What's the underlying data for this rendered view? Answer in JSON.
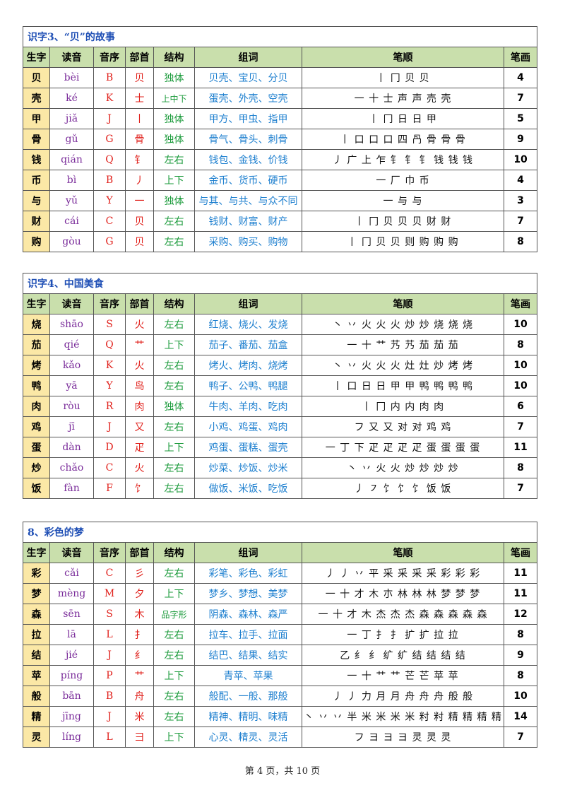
{
  "headers": {
    "char": "生字",
    "pinyin": "读音",
    "letter": "音序",
    "radical": "部首",
    "structure": "结构",
    "words": "组词",
    "order": "笔顺",
    "count": "笔画"
  },
  "sections": [
    {
      "title": "识字3、“贝”的故事",
      "rows": [
        {
          "char": "贝",
          "pinyin": "bèi",
          "letter": "B",
          "radical": "贝",
          "structure": "独体",
          "words": "贝壳、宝贝、分贝",
          "order": "丨 冂 贝 贝",
          "count": "4"
        },
        {
          "char": "壳",
          "pinyin": "ké",
          "letter": "K",
          "radical": "士",
          "structure": "上中下",
          "words": "蛋壳、外壳、空壳",
          "order": "一 十 士 声 声 売 壳",
          "count": "7"
        },
        {
          "char": "甲",
          "pinyin": "jiǎ",
          "letter": "J",
          "radical": "丨",
          "structure": "独体",
          "words": "甲方、甲虫、指甲",
          "order": "丨 冂 日 日 甲",
          "count": "5"
        },
        {
          "char": "骨",
          "pinyin": "gǔ",
          "letter": "G",
          "radical": "骨",
          "structure": "独体",
          "words": "骨气、骨头、刺骨",
          "order": "丨 口 口 口 四 冎 骨 骨 骨",
          "count": "9"
        },
        {
          "char": "钱",
          "pinyin": "qián",
          "letter": "Q",
          "radical": "钅",
          "structure": "左右",
          "words": "钱包、金钱、价钱",
          "order": "丿 广 上 乍 钅 钅 钅 钱 钱 钱",
          "count": "10"
        },
        {
          "char": "币",
          "pinyin": "bì",
          "letter": "B",
          "radical": "丿",
          "structure": "上下",
          "words": "金币、货币、硬币",
          "order": "一 厂 巾 币",
          "count": "4"
        },
        {
          "char": "与",
          "pinyin": "yǔ",
          "letter": "Y",
          "radical": "一",
          "structure": "独体",
          "words": "与其、与共、与众不同",
          "order": "一 与 与",
          "count": "3"
        },
        {
          "char": "财",
          "pinyin": "cái",
          "letter": "C",
          "radical": "贝",
          "structure": "左右",
          "words": "钱财、财富、财产",
          "order": "丨 冂 贝 贝 贝 财 财",
          "count": "7"
        },
        {
          "char": "购",
          "pinyin": "gòu",
          "letter": "G",
          "radical": "贝",
          "structure": "左右",
          "words": "采购、购买、购物",
          "order": "丨 冂 贝 贝 则 购 购 购",
          "count": "8"
        }
      ]
    },
    {
      "title": "识字4、中国美食",
      "rows": [
        {
          "char": "烧",
          "pinyin": "shāo",
          "letter": "S",
          "radical": "火",
          "structure": "左右",
          "words": "红烧、烧火、发烧",
          "order": "丶 丷 火 火 火 炒 炒 烧 烧 烧",
          "count": "10"
        },
        {
          "char": "茄",
          "pinyin": "qié",
          "letter": "Q",
          "radical": "艹",
          "structure": "上下",
          "words": "茄子、番茄、茄盒",
          "order": "一 十 艹 艿 艿 茄 茄 茄",
          "count": "8"
        },
        {
          "char": "烤",
          "pinyin": "kǎo",
          "letter": "K",
          "radical": "火",
          "structure": "左右",
          "words": "烤火、烤肉、烧烤",
          "order": "丶 丷 火 火 火 灶 灶 炒 烤 烤",
          "count": "10"
        },
        {
          "char": "鸭",
          "pinyin": "yā",
          "letter": "Y",
          "radical": "鸟",
          "structure": "左右",
          "words": "鸭子、公鸭、鸭腿",
          "order": "丨 口 日 日 甲 甲 鸭 鸭 鸭 鸭",
          "count": "10"
        },
        {
          "char": "肉",
          "pinyin": "ròu",
          "letter": "R",
          "radical": "肉",
          "structure": "独体",
          "words": "牛肉、羊肉、吃肉",
          "order": "丨 冂 内 内 肉 肉",
          "count": "6"
        },
        {
          "char": "鸡",
          "pinyin": "jī",
          "letter": "J",
          "radical": "又",
          "structure": "左右",
          "words": "小鸡、鸡蛋、鸡肉",
          "order": "フ 又 又 对 对 鸡 鸡",
          "count": "7"
        },
        {
          "char": "蛋",
          "pinyin": "dàn",
          "letter": "D",
          "radical": "疋",
          "structure": "上下",
          "words": "鸡蛋、蛋糕、蛋壳",
          "order": "一 丁 下 疋 疋 疋 疋 蛋 蛋 蛋 蛋",
          "count": "11"
        },
        {
          "char": "炒",
          "pinyin": "chǎo",
          "letter": "C",
          "radical": "火",
          "structure": "左右",
          "words": "炒菜、炒饭、炒米",
          "order": "丶 丷 火 火 炒 炒 炒 炒",
          "count": "8"
        },
        {
          "char": "饭",
          "pinyin": "fàn",
          "letter": "F",
          "radical": "饣",
          "structure": "左右",
          "words": "做饭、米饭、吃饭",
          "order": "丿 ㇇ 饣 饣 饣 饭 饭",
          "count": "7"
        }
      ]
    },
    {
      "title": "8、彩色的梦",
      "rows": [
        {
          "char": "彩",
          "pinyin": "cǎi",
          "letter": "C",
          "radical": "彡",
          "structure": "左右",
          "words": "彩笔、彩色、彩虹",
          "order": "丿 丿 丷 平 采 采 采 采 彩 彩 彩",
          "count": "11"
        },
        {
          "char": "梦",
          "pinyin": "mèng",
          "letter": "M",
          "radical": "夕",
          "structure": "上下",
          "words": "梦乡、梦想、美梦",
          "order": "一 十 才 木 朩 林 林 林 梦 梦 梦",
          "count": "11"
        },
        {
          "char": "森",
          "pinyin": "sēn",
          "letter": "S",
          "radical": "木",
          "structure": "品字形",
          "words": "阴森、森林、森严",
          "order": "一 十 才 木 杰 杰 杰 森 森 森 森 森",
          "count": "12"
        },
        {
          "char": "拉",
          "pinyin": "lā",
          "letter": "L",
          "radical": "扌",
          "structure": "左右",
          "words": "拉车、拉手、拉面",
          "order": "一 丁 扌 扌 扩 扩 拉 拉",
          "count": "8"
        },
        {
          "char": "结",
          "pinyin": "jié",
          "letter": "J",
          "radical": "纟",
          "structure": "左右",
          "words": "结巴、结果、结实",
          "order": "乙 纟 纟 纩 纩 结 结 结 结",
          "count": "9"
        },
        {
          "char": "苹",
          "pinyin": "píng",
          "letter": "P",
          "radical": "艹",
          "structure": "上下",
          "words": "青苹、苹果",
          "order": "一 十 艹 艹 芒 芒 苹 苹",
          "count": "8"
        },
        {
          "char": "般",
          "pinyin": "bān",
          "letter": "B",
          "radical": "舟",
          "structure": "左右",
          "words": "般配、一般、那般",
          "order": "丿 丿 力 月 月 舟 舟 舟 般 般",
          "count": "10"
        },
        {
          "char": "精",
          "pinyin": "jīng",
          "letter": "J",
          "radical": "米",
          "structure": "左右",
          "words": "精神、精明、味精",
          "order": "丶 丷 丷 半 米 米 米 米 籿 籿 精 精 精 精",
          "count": "14"
        },
        {
          "char": "灵",
          "pinyin": "líng",
          "letter": "L",
          "radical": "彐",
          "structure": "上下",
          "words": "心灵、精灵、灵活",
          "order": "フ ヨ ヨ ヨ 灵 灵 灵",
          "count": "7"
        }
      ]
    }
  ],
  "footer": "第 4 页，共 10 页"
}
